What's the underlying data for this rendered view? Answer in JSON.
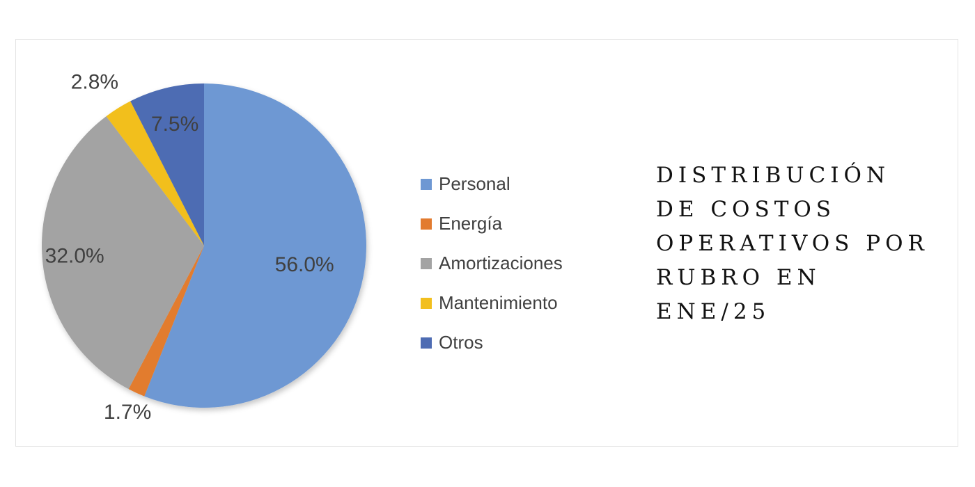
{
  "chart_data": {
    "type": "pie",
    "title_lines": [
      "DISTRIBUCIÓN",
      "DE COSTOS",
      "OPERATIVOS POR",
      "RUBRO EN",
      "ENE/25"
    ],
    "legend_position": "right",
    "slices": [
      {
        "label": "Personal",
        "value": 56.0,
        "data_label": "56.0%",
        "color": "#6e98d3"
      },
      {
        "label": "Energía",
        "value": 1.7,
        "data_label": "1.7%",
        "color": "#e27b2f"
      },
      {
        "label": "Amortizaciones",
        "value": 32.0,
        "data_label": "32.0%",
        "color": "#a3a3a3"
      },
      {
        "label": "Mantenimiento",
        "value": 2.8,
        "data_label": "2.8%",
        "color": "#f2bf1e"
      },
      {
        "label": "Otros",
        "value": 7.5,
        "data_label": "7.5%",
        "color": "#4e6cb3"
      }
    ]
  }
}
